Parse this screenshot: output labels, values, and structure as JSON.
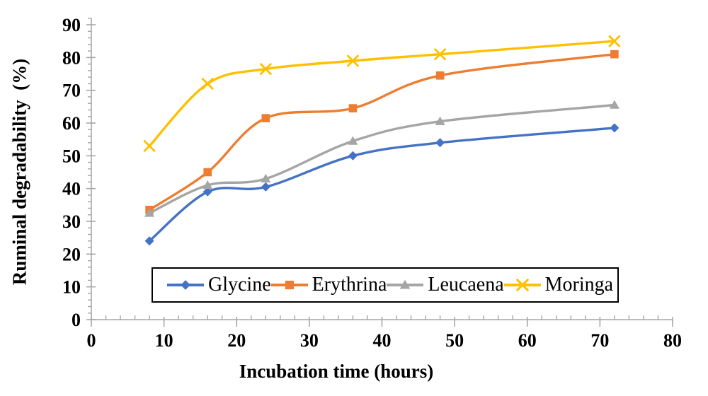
{
  "chart_data": {
    "type": "line",
    "title": "",
    "xlabel": "Incubation time (hours)",
    "ylabel": "Ruminal degradability  (%)",
    "x": [
      8,
      16,
      24,
      36,
      48,
      72
    ],
    "xlim": [
      0,
      80
    ],
    "ylim": [
      0,
      90
    ],
    "x_ticks": [
      0,
      10,
      20,
      30,
      40,
      50,
      60,
      70,
      80
    ],
    "y_ticks": [
      0,
      10,
      20,
      30,
      40,
      50,
      60,
      70,
      80,
      90
    ],
    "x_minor_tick_step": 2,
    "y_minor_tick_step": 2,
    "grid": "off",
    "smooth_lines": true,
    "legend_position": "bottom-center-boxed",
    "axis_color": "#a6a6a6",
    "text_color": "#000000",
    "series": [
      {
        "name": "Glycine",
        "color": "#4472C4",
        "marker": "diamond",
        "values": [
          24,
          39,
          40.5,
          50,
          54,
          58.5
        ]
      },
      {
        "name": "Erythrina",
        "color": "#ED7D31",
        "marker": "square",
        "values": [
          33.5,
          45,
          61.5,
          64.5,
          74.5,
          81
        ]
      },
      {
        "name": "Leucaena",
        "color": "#A5A5A5",
        "marker": "triangle",
        "values": [
          32.5,
          41,
          43,
          54.5,
          60.5,
          65.5
        ]
      },
      {
        "name": "Moringa",
        "color": "#FFC000",
        "marker": "x",
        "values": [
          53,
          72,
          76.5,
          79,
          81,
          85
        ]
      }
    ]
  }
}
